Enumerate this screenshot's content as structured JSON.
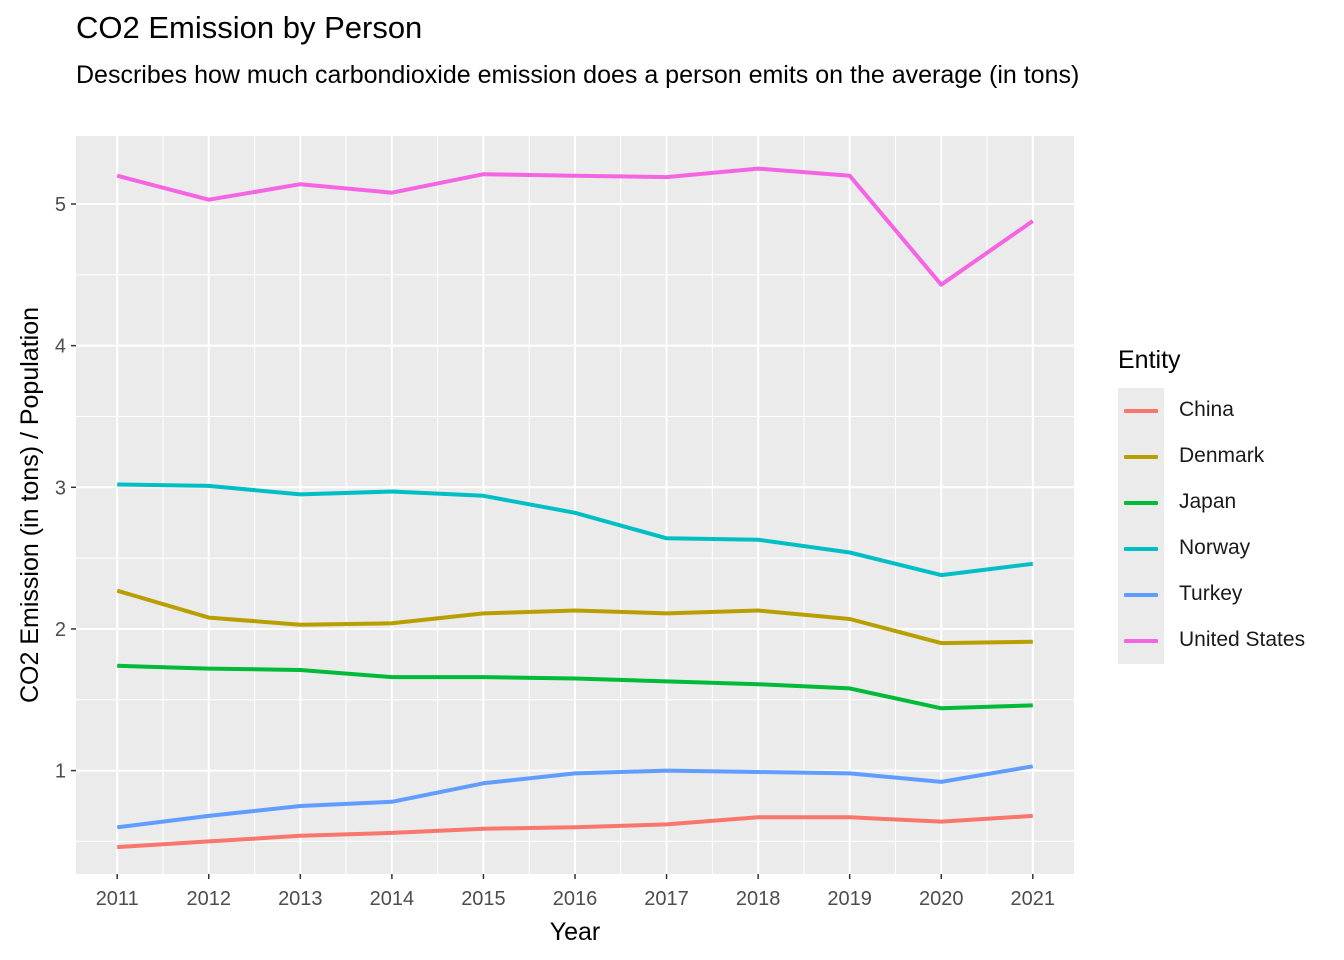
{
  "chart_data": {
    "type": "line",
    "title": "CO2 Emission by Person",
    "subtitle": "Describes how much carbondioxide emission does a person emits on the average (in tons)",
    "xlabel": "Year",
    "ylabel": "CO2 Emission (in tons) / Population",
    "x": [
      2011,
      2012,
      2013,
      2014,
      2015,
      2016,
      2017,
      2018,
      2019,
      2020,
      2021
    ],
    "xlim": [
      2010.55,
      2021.45
    ],
    "ylim": [
      0.27,
      5.48
    ],
    "yticks": [
      1,
      2,
      3,
      4,
      5
    ],
    "grid": true,
    "legend_title": "Entity",
    "legend_position": "right",
    "series": [
      {
        "name": "China",
        "color": "#F8766D",
        "values": [
          0.46,
          0.5,
          0.54,
          0.56,
          0.59,
          0.6,
          0.62,
          0.67,
          0.67,
          0.64,
          0.68
        ]
      },
      {
        "name": "Denmark",
        "color": "#B79F00",
        "values": [
          2.27,
          2.08,
          2.03,
          2.04,
          2.11,
          2.13,
          2.11,
          2.13,
          2.07,
          1.9,
          1.91
        ]
      },
      {
        "name": "Japan",
        "color": "#00BA38",
        "values": [
          1.74,
          1.72,
          1.71,
          1.66,
          1.66,
          1.65,
          1.63,
          1.61,
          1.58,
          1.44,
          1.46
        ]
      },
      {
        "name": "Norway",
        "color": "#00BFC4",
        "values": [
          3.02,
          3.01,
          2.95,
          2.97,
          2.94,
          2.82,
          2.64,
          2.63,
          2.54,
          2.38,
          2.46
        ]
      },
      {
        "name": "Turkey",
        "color": "#619CFF",
        "values": [
          0.6,
          0.68,
          0.75,
          0.78,
          0.91,
          0.98,
          1.0,
          0.99,
          0.98,
          0.92,
          1.03
        ]
      },
      {
        "name": "United States",
        "color": "#F564E3",
        "values": [
          5.2,
          5.03,
          5.14,
          5.08,
          5.21,
          5.2,
          5.19,
          5.25,
          5.2,
          4.43,
          4.88
        ]
      }
    ]
  }
}
